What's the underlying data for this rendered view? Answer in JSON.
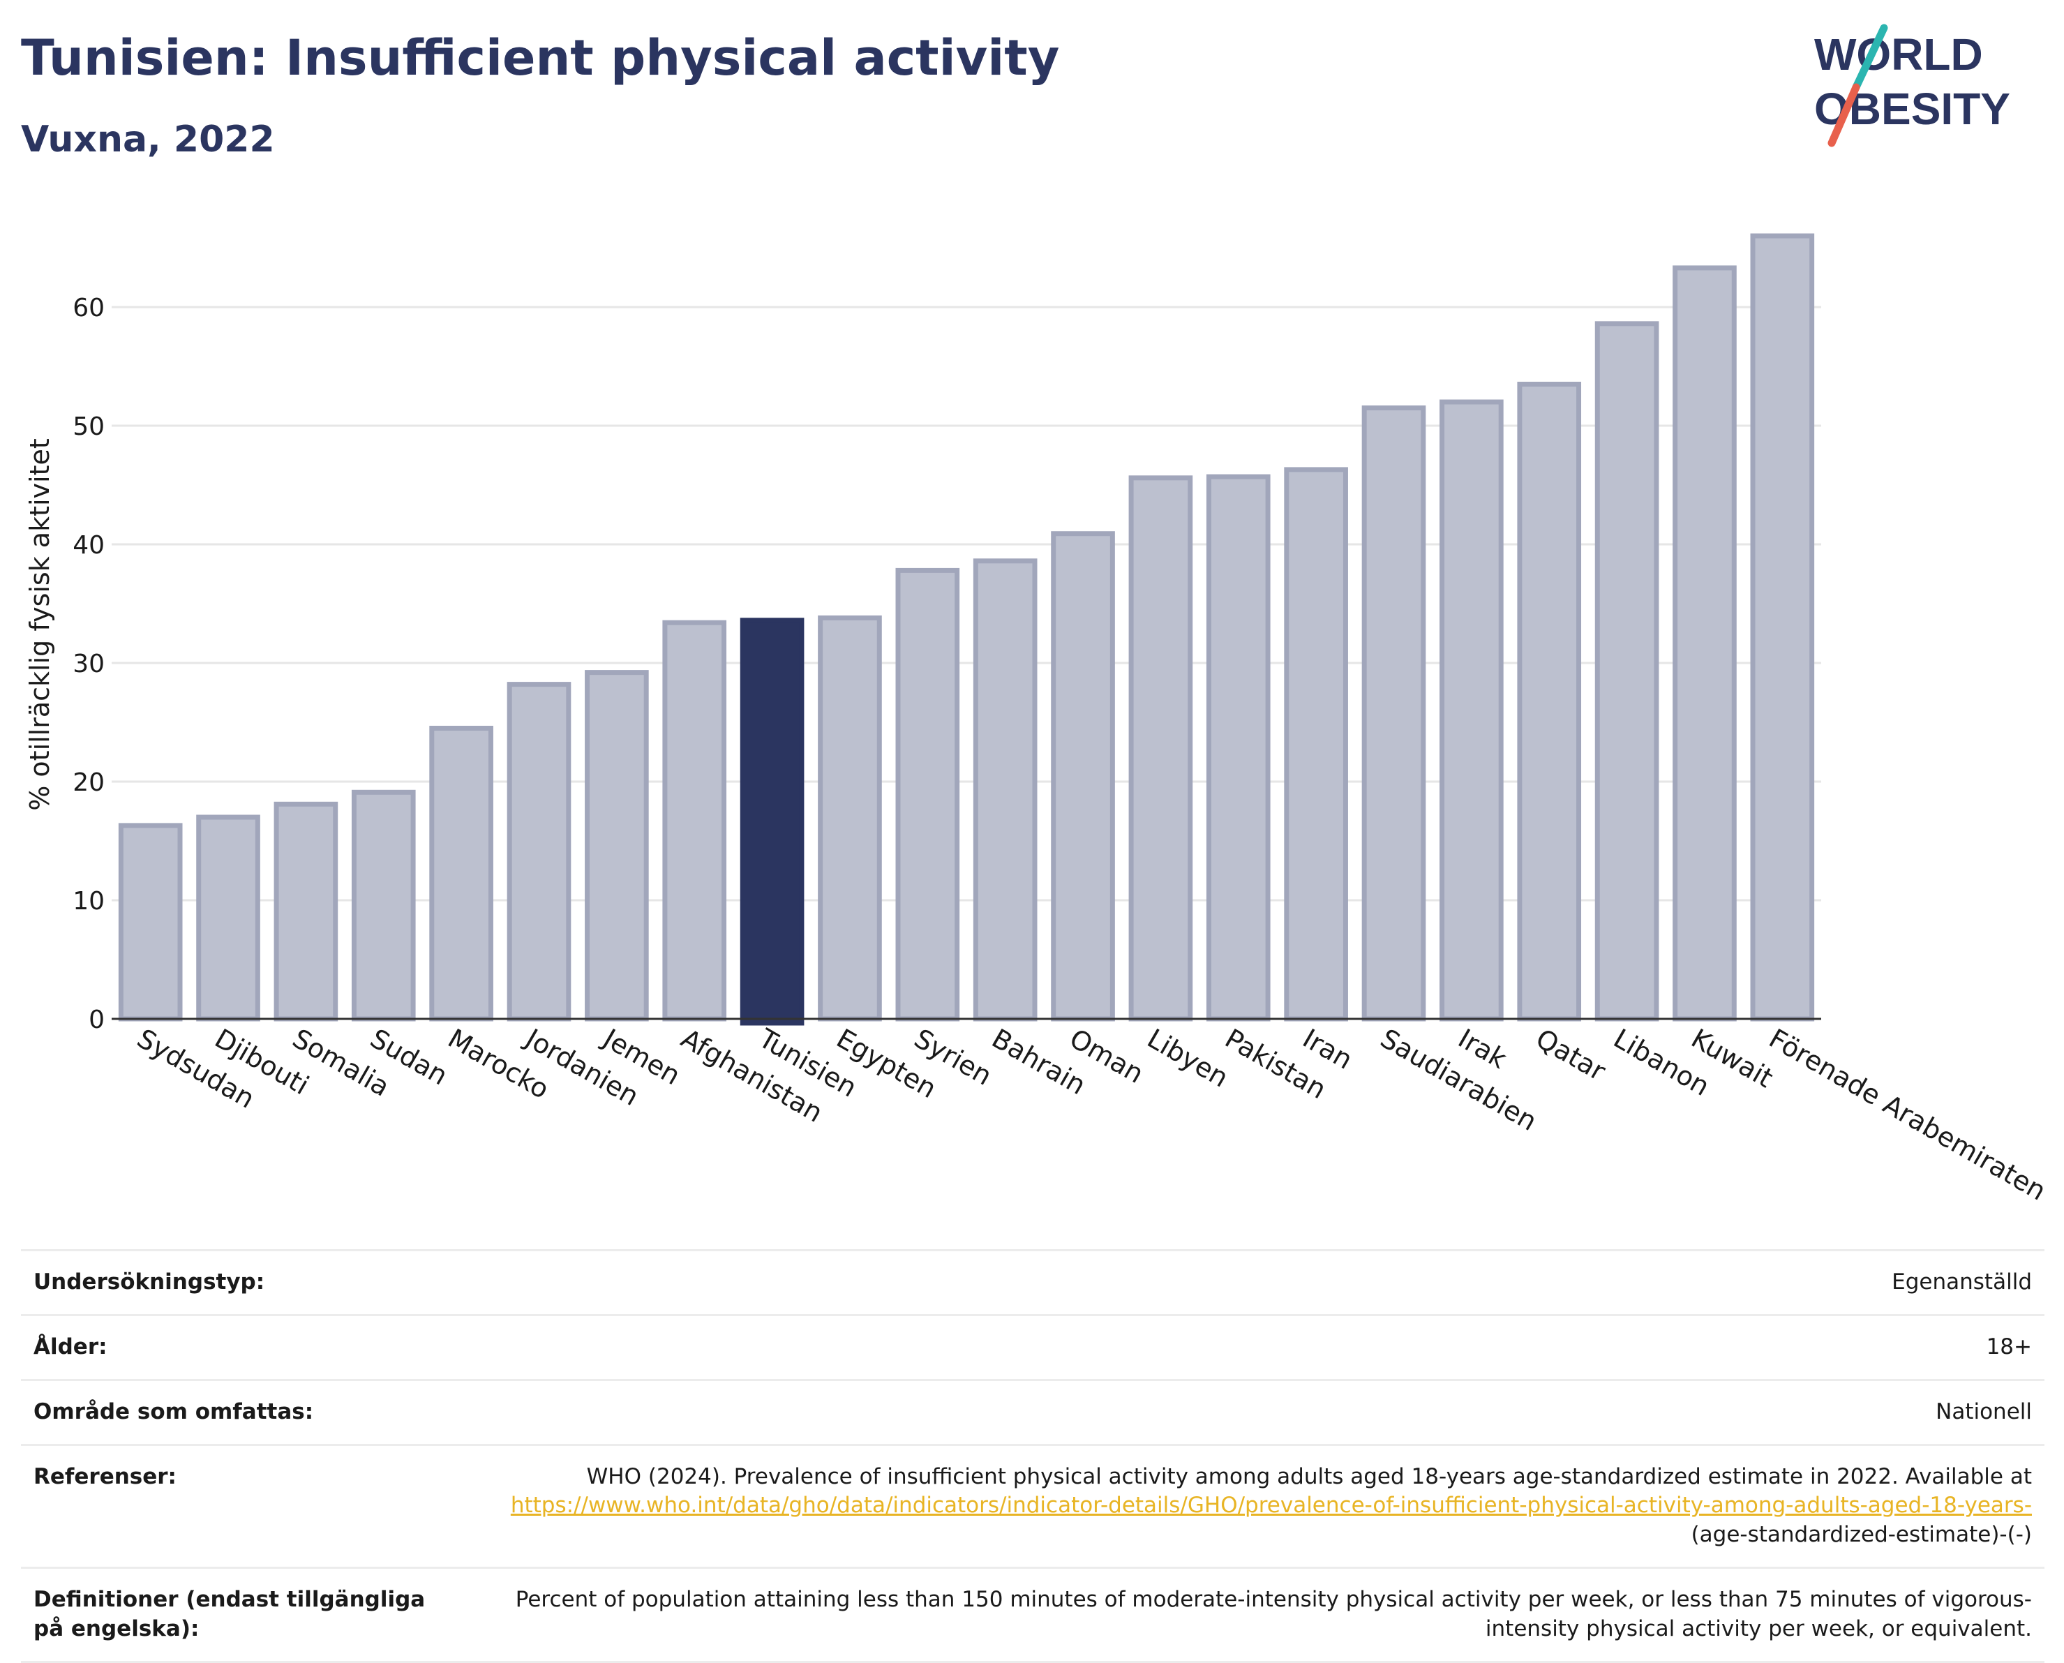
{
  "header": {
    "title": "Tunisien: Insufficient physical activity",
    "subtitle": "Vuxna, 2022"
  },
  "logo": {
    "line1": "WORLD",
    "line2": "OBESITY",
    "text_color": "#2b3560",
    "slash_colors": [
      "#2bb5b0",
      "#e8604c"
    ]
  },
  "colors": {
    "bar": "#bcc0cf",
    "bar_stroke": "#a1a6bb",
    "highlight": "#2b3560",
    "axis_text": "#1a1a1a",
    "grid": "#e6e6e6"
  },
  "chart_data": {
    "type": "bar",
    "ylabel": "% otillräcklig fysisk aktivitet",
    "ylim": [
      0,
      70
    ],
    "yticks": [
      0,
      10,
      20,
      30,
      40,
      50,
      60
    ],
    "grid": true,
    "highlight": "Tunisien",
    "categories": [
      "Sydsudan",
      "Djibouti",
      "Somalia",
      "Sudan",
      "Marocko",
      "Jordanien",
      "Jemen",
      "Afghanistan",
      "Tunisien",
      "Egypten",
      "Syrien",
      "Bahrain",
      "Oman",
      "Libyen",
      "Pakistan",
      "Iran",
      "Saudiarabien",
      "Irak",
      "Qatar",
      "Libanon",
      "Kuwait",
      "Förenade Arabemiraten"
    ],
    "values": [
      16.3,
      17.0,
      18.1,
      19.1,
      24.5,
      28.2,
      29.2,
      33.4,
      33.6,
      33.8,
      37.8,
      38.6,
      40.9,
      45.6,
      45.7,
      46.3,
      51.5,
      52.0,
      53.5,
      58.6,
      63.3,
      66.0
    ]
  },
  "info": {
    "rows": [
      {
        "label": "Undersökningstyp:",
        "value": "Egenanställd"
      },
      {
        "label": "Ålder:",
        "value": "18+"
      },
      {
        "label": "Område som omfattas:",
        "value": "Nationell"
      }
    ],
    "ref": {
      "label": "Referenser:",
      "text": "WHO (2024). Prevalence of insufficient physical activity among adults aged 18-years age-standardized estimate in 2022. Available at",
      "link": "https://www.who.int/data/gho/data/indicators/indicator-details/GHO/prevalence-of-insufficient-physical-activity-among-adults-aged-18-years-",
      "tail": "(age-standardized-estimate)-(-)"
    },
    "def": {
      "label": "Definitioner (endast tillgängliga på engelska):",
      "value": "Percent of population attaining less than 150 minutes of moderate-intensity physical activity per week, or less than 75 minutes of vigorous-intensity physical activity per week, or equivalent."
    }
  }
}
